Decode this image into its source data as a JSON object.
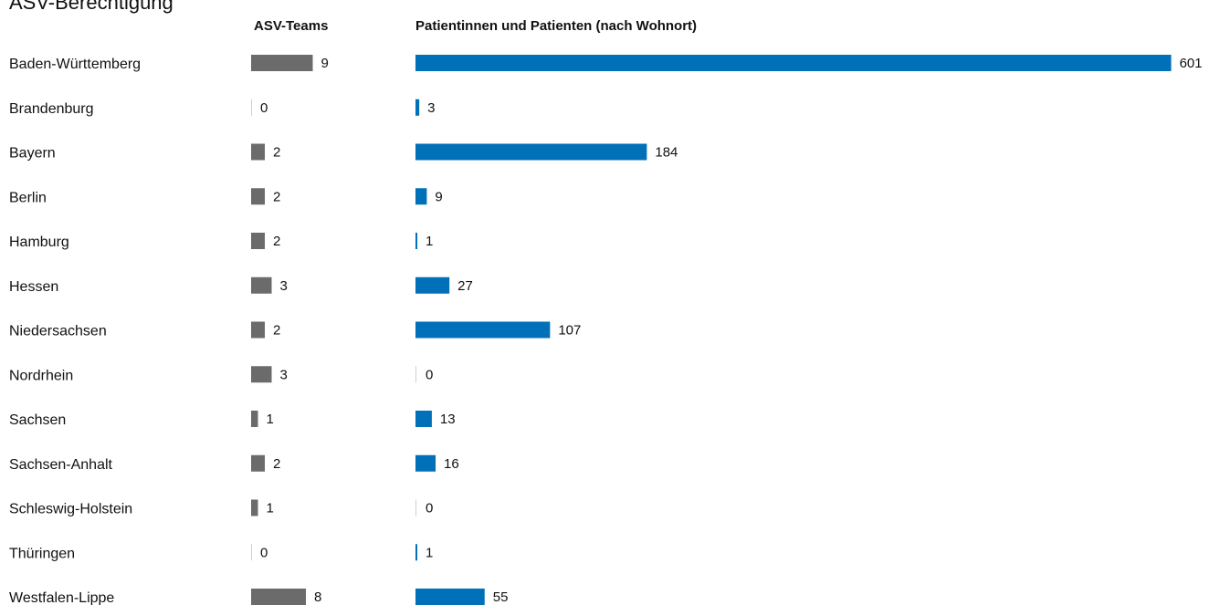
{
  "title": "ASV-Berechtigung",
  "colors": {
    "teams": "#6b6b6b",
    "patients": "#0070b8",
    "zero_tick": "#cfcfcf"
  },
  "chart_data": {
    "type": "bar",
    "orientation": "horizontal",
    "title": "ASV-Berechtigung",
    "categories": [
      "Baden-Württemberg",
      "Brandenburg",
      "Bayern",
      "Berlin",
      "Hamburg",
      "Hessen",
      "Niedersachsen",
      "Nordrhein",
      "Sachsen",
      "Sachsen-Anhalt",
      "Schleswig-Holstein",
      "Thüringen",
      "Westfalen-Lippe"
    ],
    "series": [
      {
        "name": "ASV-Teams",
        "values": [
          9,
          0,
          2,
          2,
          2,
          3,
          2,
          3,
          1,
          2,
          1,
          0,
          8
        ]
      },
      {
        "name": "Patientinnen und Patienten (nach Wohnort)",
        "values": [
          601,
          3,
          184,
          9,
          1,
          27,
          107,
          0,
          13,
          16,
          0,
          1,
          55
        ]
      }
    ],
    "grid": false,
    "legend": "none"
  }
}
